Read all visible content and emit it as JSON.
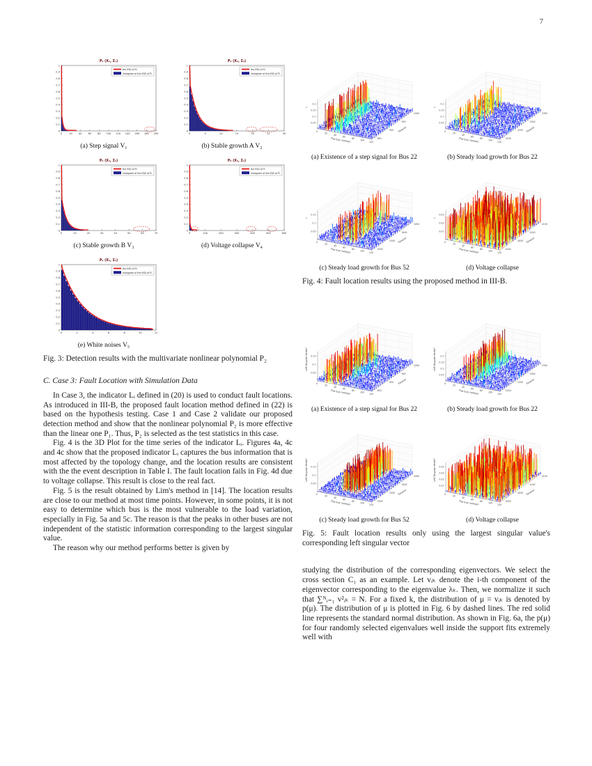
{
  "page_number": "7",
  "fig3": {
    "caption": "Fig. 3: Detection results with the multivariate nonlinear polynomial P₂",
    "legend_line": "the ESD of P₂",
    "legend_hist": "histogram of the ESD of P̂₂",
    "y_tick_step": 0.1,
    "panels": [
      {
        "key": "a",
        "title": "P₂ (X₁, Σ₁)",
        "caption": "(a) Step signal V₁",
        "x_ticks": [
          "0",
          "20",
          "40",
          "60",
          "80",
          "100",
          "120",
          "140",
          "160",
          "180",
          "200"
        ],
        "first_bar": 0.22,
        "rho": 0.5,
        "n_bars": 8,
        "extent": 0.08,
        "tail": 0.16,
        "ellipses": [
          [
            0.88,
            0.99
          ]
        ]
      },
      {
        "key": "b",
        "title": "P₂ (X₂, Σ₂)",
        "caption": "(b) Stable growth A V₂",
        "x_ticks": [
          "0",
          "5",
          "10",
          "15",
          "20",
          "25",
          "30"
        ],
        "first_bar": 0.68,
        "rho": 0.82,
        "n_bars": 26,
        "extent": 0.42,
        "tail": 0.46,
        "ellipses": [
          [
            0.6,
            0.71
          ],
          [
            0.74,
            0.93
          ]
        ]
      },
      {
        "key": "c",
        "title": "P₂ (X₃, Σ₃)",
        "caption": "(c) Stable growth B V₃",
        "x_ticks": [
          "0",
          "10",
          "20",
          "30",
          "40",
          "50",
          "60",
          "70"
        ],
        "first_bar": 0.47,
        "rho": 0.8,
        "n_bars": 22,
        "extent": 0.24,
        "tail": 0.28,
        "ellipses": [
          [
            0.76,
            0.93
          ]
        ]
      },
      {
        "key": "d",
        "title": "P₂ (X₄, Σ₄)",
        "caption": "(d) Voltage collapse V₄",
        "x_ticks": [
          "0",
          "100",
          "200",
          "300",
          "400",
          "500",
          "600"
        ],
        "first_bar": 0.1,
        "rho": 0.4,
        "n_bars": 4,
        "extent": 0.035,
        "tail": 0.08,
        "ellipses": [
          [
            0.02,
            0.09
          ],
          [
            0.6,
            0.7
          ],
          [
            0.82,
            0.92
          ]
        ]
      },
      {
        "key": "e",
        "title": "P₂ (X₅, Σ₅)",
        "caption": "(e) White noises V₅",
        "x_ticks": [
          "0",
          "2",
          "4",
          "6",
          "8",
          "10",
          "12"
        ],
        "first_bar": 0.92,
        "rho": 0.9,
        "n_bars": 40,
        "extent": 0.96,
        "tail": 0.97,
        "ellipses": []
      }
    ]
  },
  "fig4": {
    "caption": "Fig. 4: Fault location results using the proposed method in III-B.",
    "zlabel": "L",
    "xlabel": "The bus number",
    "ylabel": "Time(s)",
    "bus_ticks": [
      "0",
      "20",
      "40",
      "60",
      "80",
      "100",
      "120"
    ],
    "panels": [
      {
        "key": "a",
        "caption": "(a) Existence of a step signal for Bus 22",
        "z_ticks": [
          "0.05",
          "0.1",
          "0.15",
          "0.2"
        ],
        "time_ticks": [
          "850",
          "900",
          "950",
          "1000"
        ],
        "seed": 11,
        "peaks": [
          {
            "bus": [
              0.12,
              0.2
            ],
            "t": [
              0,
              1
            ],
            "h": 0.95,
            "sparse": 0.9
          },
          {
            "bus": [
              0.26,
              0.4
            ],
            "t": [
              0,
              0.8
            ],
            "h": 0.5,
            "sparse": 0.8
          }
        ]
      },
      {
        "key": "b",
        "caption": "(b) Steady load growth for Bus 22",
        "z_ticks": [
          "0.05",
          "0.1",
          "0.15",
          "0.2"
        ],
        "time_ticks": [
          "2200",
          "2250",
          "2300",
          "2350"
        ],
        "seed": 22,
        "peaks": [
          {
            "bus": [
              0.1,
              0.38
            ],
            "t": [
              0.05,
              0.95
            ],
            "h": 0.8,
            "sparse": 0.45
          }
        ]
      },
      {
        "key": "c",
        "caption": "(c) Steady load growth for Bus 52",
        "z_ticks": [
          "0.05",
          "0.1",
          "0.15"
        ],
        "time_ticks": [
          "3300",
          "3350",
          "3400",
          "3450"
        ],
        "seed": 33,
        "peaks": [
          {
            "bus": [
              0.3,
              0.62
            ],
            "t": [
              0.1,
              1
            ],
            "h": 0.9,
            "sparse": 0.5
          }
        ]
      },
      {
        "key": "d",
        "caption": "(d) Voltage collapse",
        "z_ticks": [
          "0.01",
          "0.02",
          "0.03"
        ],
        "time_ticks": [
          "4000",
          "4050",
          "4100",
          "4150"
        ],
        "seed": 44,
        "peaks": [
          {
            "bus": [
              0,
              1
            ],
            "t": [
              0,
              1
            ],
            "h": 0.95,
            "sparse": 0.72
          }
        ]
      }
    ]
  },
  "fig5": {
    "caption": "Fig. 5: Fault location results only using the largest singular value's corresponding left singular vector",
    "zlabel": "Left Singular Vector²",
    "xlabel": "The bus number",
    "ylabel": "Time(s)",
    "bus_ticks": [
      "0",
      "20",
      "40",
      "60",
      "80",
      "100",
      "120"
    ],
    "panels": [
      {
        "key": "a",
        "caption": "(a) Existence of a step signal for Bus 22",
        "z_ticks": [
          "0.05",
          "0.1",
          "0.15"
        ],
        "time_ticks": [
          "850",
          "900",
          "950",
          "1000"
        ],
        "seed": 55,
        "peaks": [
          {
            "bus": [
              0.1,
              0.42
            ],
            "t": [
              0,
              1
            ],
            "h": 0.9,
            "sparse": 0.6
          },
          {
            "bus": [
              0.45,
              0.6
            ],
            "t": [
              0.2,
              0.8
            ],
            "h": 0.45,
            "sparse": 0.4
          }
        ]
      },
      {
        "key": "b",
        "caption": "(b) Steady load growth for Bus 22",
        "z_ticks": [
          "0.05",
          "0.1",
          "0.15",
          "0.2"
        ],
        "time_ticks": [
          "2200",
          "2250",
          "2300",
          "2350"
        ],
        "seed": 66,
        "peaks": [
          {
            "bus": [
              0.24,
              0.38
            ],
            "t": [
              0.1,
              1
            ],
            "h": 0.95,
            "sparse": 0.92
          },
          {
            "bus": [
              0.4,
              0.55
            ],
            "t": [
              0.2,
              0.9
            ],
            "h": 0.5,
            "sparse": 0.5
          }
        ]
      },
      {
        "key": "c",
        "caption": "(c) Steady load growth for Bus 52",
        "z_ticks": [
          "0.05",
          "0.1",
          "0.15"
        ],
        "time_ticks": [
          "3300",
          "3350",
          "3400",
          "3450"
        ],
        "seed": 77,
        "peaks": [
          {
            "bus": [
              0.32,
              0.65
            ],
            "t": [
              0.15,
              1
            ],
            "h": 0.95,
            "sparse": 0.9
          }
        ]
      },
      {
        "key": "d",
        "caption": "(d) Voltage collapse",
        "z_ticks": [
          "0.01",
          "0.02",
          "0.03",
          "0.04"
        ],
        "time_ticks": [
          "4000",
          "4050",
          "4100",
          "4150"
        ],
        "seed": 88,
        "peaks": [
          {
            "bus": [
              0,
              1
            ],
            "t": [
              0,
              1
            ],
            "h": 0.92,
            "sparse": 0.68
          }
        ]
      }
    ]
  },
  "sectionC": {
    "heading": "C. Case 3: Fault Location with Simulation Data",
    "paragraphs": [
      "In Case 3, the indicator Lᵢ defined in (20) is used to conduct fault locations. As introduced in III-B, the proposed fault location method defined in (22) is based on the hypothesis testing. Case 1 and Case 2 validate our proposed detection method and show that the nonlinear polynomial P₂ is more effective than the linear one P₁. Thus, P₂ is selected as the test statistics in this case.",
      "Fig. 4 is the 3D Plot for the time series of the indicator Lᵢ. Figures 4a, 4c and 4c show that the proposed indicator Lᵢ captures the bus information that is most affected by the topology change, and the location results are consistent with the the event description in Table I. The fault location fails in Fig. 4d due to voltage collapse. This result is close to the real fact.",
      "Fig. 5 is the result obtained by Lim's method in [14]. The location results are close to our method at most time points. However, in some points, it is not easy to determine which bus is the most vulnerable to the load variation, especially in Fig. 5a and 5c. The reason is that the peaks in other buses are not independent of the statistic information corresponding to the largest singular value.",
      "The reason why our method performs better is given by"
    ]
  },
  "right_column_text": {
    "paragraphs": [
      "studying the distribution of the corresponding eigenvectors. We select the cross section C₁ as an example. Let vᵢₖ denote the i-th component of the eigenvector corresponding to the eigenvalue λₖ. Then, we normalize it such that ∑ᴺᵢ₌₁ v²ᵢₖ = N. For a fixed k, the distribution of μ = vᵢₖ is denoted by p(μ). The distribution of μ is plotted in Fig. 6 by dashed lines. The red solid line represents the standard normal distribution. As shown in Fig. 6a, the p(μ) for four randomly selected eigenvalues well inside the support fits extremely well with"
    ]
  },
  "colors": {
    "hist_bar": "#20208c",
    "esd_curve": "#e81616",
    "annotation_ellipse": "#cc2222",
    "noise_spike": "#000a8f"
  }
}
